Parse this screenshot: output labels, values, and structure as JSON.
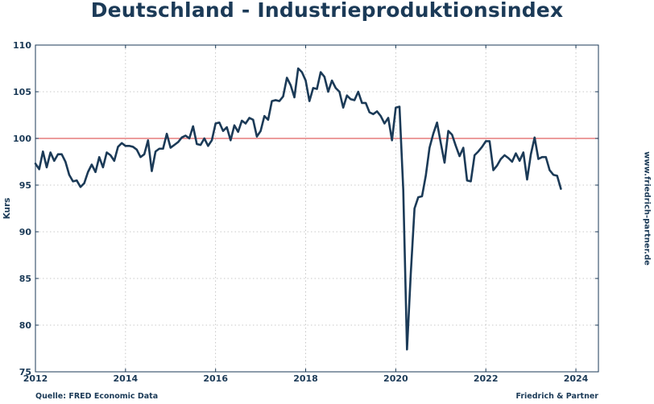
{
  "chart_data": {
    "type": "line",
    "title": "Deutschland - Industrieproduktionsindex",
    "xlabel": "",
    "ylabel": "Kurs",
    "xlim": [
      2012.0,
      2024.5
    ],
    "ylim": [
      75,
      110
    ],
    "x_ticks": [
      2012,
      2014,
      2016,
      2018,
      2020,
      2022,
      2024
    ],
    "y_ticks": [
      75,
      80,
      85,
      90,
      95,
      100,
      105,
      110
    ],
    "x_tick_labels": [
      "2012",
      "2014",
      "2016",
      "2018",
      "2020",
      "2022",
      "2024"
    ],
    "y_tick_labels": [
      "75",
      "80",
      "85",
      "90",
      "95",
      "100",
      "105",
      "110"
    ],
    "grid": true,
    "reference_line": {
      "value": 100,
      "color": "#e06060"
    },
    "series": [
      {
        "name": "Industrieproduktionsindex",
        "color": "#1b3a57",
        "start": [
          2012,
          1
        ],
        "frequency": "monthly",
        "values": [
          97.3,
          96.7,
          98.6,
          96.9,
          98.5,
          97.6,
          98.3,
          98.3,
          97.5,
          96.1,
          95.4,
          95.5,
          94.8,
          95.2,
          96.4,
          97.2,
          96.4,
          98.0,
          96.9,
          98.5,
          98.2,
          97.6,
          99.1,
          99.5,
          99.2,
          99.2,
          99.1,
          98.8,
          98.0,
          98.3,
          99.8,
          96.5,
          98.6,
          98.9,
          98.9,
          100.5,
          99.0,
          99.3,
          99.6,
          100.1,
          100.3,
          100.0,
          101.3,
          99.4,
          99.3,
          100.0,
          99.2,
          99.8,
          101.6,
          101.7,
          100.8,
          101.2,
          99.8,
          101.4,
          100.7,
          101.9,
          101.6,
          102.2,
          102.0,
          100.2,
          100.8,
          102.4,
          102.0,
          104.0,
          104.1,
          104.0,
          104.5,
          106.5,
          105.7,
          104.4,
          107.5,
          107.1,
          106.2,
          104.0,
          105.4,
          105.3,
          107.1,
          106.6,
          105.0,
          106.2,
          105.4,
          105.0,
          103.3,
          104.6,
          104.2,
          104.1,
          105.0,
          103.8,
          103.8,
          102.8,
          102.6,
          102.9,
          102.4,
          101.6,
          102.2,
          99.8,
          103.3,
          103.4,
          94.5,
          77.4,
          85.5,
          92.5,
          93.7,
          93.8,
          96.0,
          99.0,
          100.5,
          101.7,
          99.5,
          97.4,
          100.8,
          100.4,
          99.2,
          98.1,
          99.0,
          95.5,
          95.4,
          98.2,
          98.6,
          99.1,
          99.7,
          99.7,
          96.6,
          97.1,
          97.8,
          98.2,
          97.9,
          97.5,
          98.4,
          97.6,
          98.5,
          95.6,
          98.3,
          100.1,
          97.8,
          98.0,
          98.0,
          96.6,
          96.1,
          96.0,
          94.6
        ]
      }
    ]
  },
  "footer": {
    "source": "Quelle: FRED Economic Data",
    "brand": "Friedrich & Partner"
  },
  "watermark": "www.friedrich-partner.de"
}
